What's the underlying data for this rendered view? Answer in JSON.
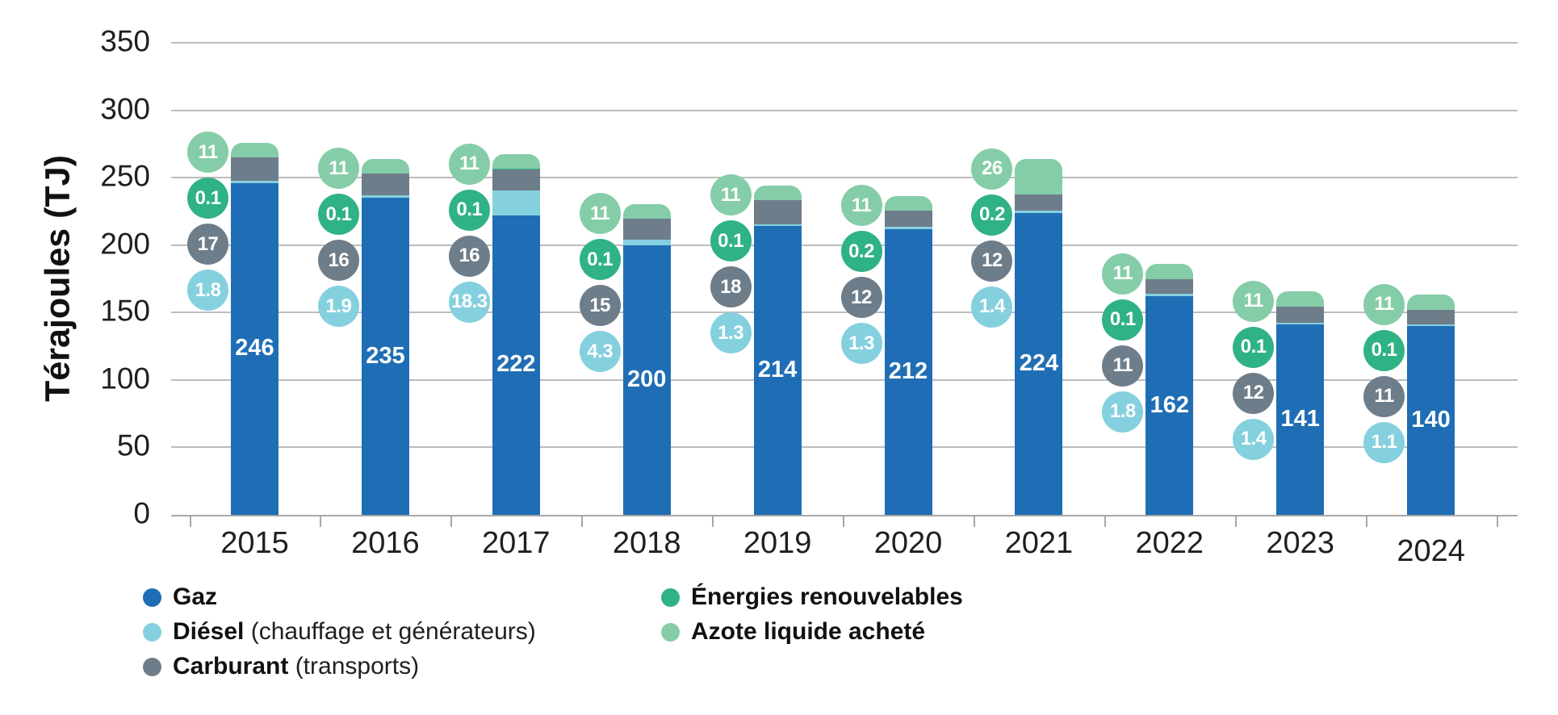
{
  "chart_data": {
    "type": "bar",
    "subtype": "stacked-vertical-rounded-top",
    "title": "",
    "ylabel": "Térajoules (TJ)",
    "xlabel": "",
    "ylim": [
      0,
      350
    ],
    "ytick_step": 50,
    "ytick_labels": [
      "0",
      "50",
      "100",
      "150",
      "200",
      "250",
      "300",
      "350"
    ],
    "grid": true,
    "legend_position": "bottom",
    "categories": [
      "2015",
      "2016",
      "2017",
      "2018",
      "2019",
      "2020",
      "2021",
      "2022",
      "2023",
      "2024"
    ],
    "series": [
      {
        "name": "Gaz",
        "color": "#1F6EB5",
        "values": [
          246,
          235,
          222,
          200,
          214,
          212,
          224,
          162,
          141,
          140
        ],
        "labels": [
          "246",
          "235",
          "222",
          "200",
          "214",
          "212",
          "224",
          "162",
          "141",
          "140"
        ],
        "label_style": "inside-bar-white"
      },
      {
        "name": "Diésel (chauffage et générateurs)",
        "color": "#85D0DE",
        "values": [
          1.8,
          1.9,
          18.3,
          4.3,
          1.3,
          1.3,
          1.4,
          1.8,
          1.4,
          1.1
        ],
        "labels": [
          "1.8",
          "1.9",
          "18.3",
          "4.3",
          "1.3",
          "1.3",
          "1.4",
          "1.8",
          "1.4",
          "1.1"
        ],
        "label_style": "circle-left-of-bar"
      },
      {
        "name": "Carburant (transports)",
        "color": "#6E7D8A",
        "values": [
          17,
          16,
          16,
          15,
          18,
          12,
          12,
          11,
          12,
          11
        ],
        "labels": [
          "17",
          "16",
          "16",
          "15",
          "18",
          "12",
          "12",
          "11",
          "12",
          "11"
        ],
        "label_style": "circle-left-of-bar"
      },
      {
        "name": "Énergies renouvelables",
        "color": "#2FB286",
        "values": [
          0.1,
          0.1,
          0.1,
          0.1,
          0.1,
          0.2,
          0.2,
          0.1,
          0.1,
          0.1
        ],
        "labels": [
          "0.1",
          "0.1",
          "0.1",
          "0.1",
          "0.1",
          "0.2",
          "0.2",
          "0.1",
          "0.1",
          "0.1"
        ],
        "label_style": "circle-left-of-bar"
      },
      {
        "name": "Azote liquide acheté",
        "color": "#85CDA8",
        "values": [
          11,
          11,
          11,
          11,
          11,
          11,
          26,
          11,
          11,
          11
        ],
        "labels": [
          "11",
          "11",
          "11",
          "11",
          "11",
          "11",
          "26",
          "11",
          "11",
          "11"
        ],
        "label_style": "circle-left-of-bar"
      }
    ]
  },
  "legend": {
    "items": [
      {
        "bold": "Gaz",
        "rest": ""
      },
      {
        "bold": "Diésel",
        "rest": " (chauffage et générateurs)"
      },
      {
        "bold": "Carburant",
        "rest": " (transports)"
      },
      {
        "bold": "Énergies renouvelables",
        "rest": ""
      },
      {
        "bold": "Azote liquide acheté",
        "rest": ""
      }
    ]
  },
  "colors": {
    "gridline": "#BCBCBC",
    "axis": "#A8A8A8",
    "text": "#1F1F1F",
    "bar_label_text": "#FFFFFF"
  }
}
